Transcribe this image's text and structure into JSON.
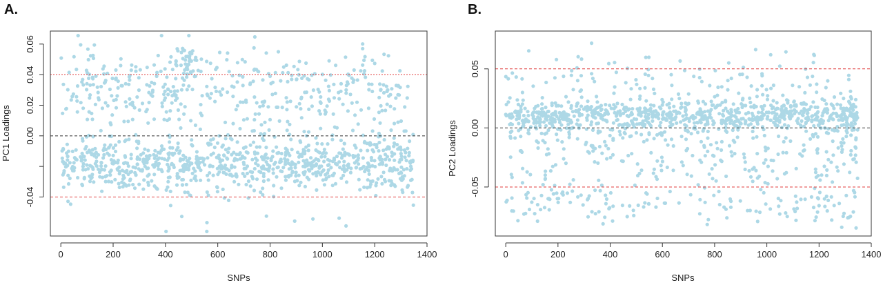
{
  "colors": {
    "point": "#add8e6",
    "reference_line": "#e03c3c",
    "zero_line": "#333333",
    "axis": "#333333"
  },
  "chart_data": [
    {
      "panel": "A.",
      "type": "scatter",
      "xlabel": "SNPs",
      "ylabel": "PC1 Loadings",
      "xlim": [
        -40,
        1400
      ],
      "ylim": [
        -0.0655,
        0.0685
      ],
      "xticks": [
        0,
        200,
        400,
        600,
        800,
        1000,
        1200,
        1400
      ],
      "xtick_labels": [
        "0",
        "200",
        "400",
        "600",
        "800",
        "1000",
        "1200",
        "1400"
      ],
      "yticks": [
        -0.04,
        -0.02,
        0.0,
        0.02,
        0.04,
        0.06
      ],
      "ytick_labels": [
        "-0.04",
        "",
        "0.00",
        "0.02",
        "0.04",
        "0.06"
      ],
      "hlines": [
        {
          "y": 0.04,
          "style": "dotted",
          "color": "reference_line"
        },
        {
          "y": 0.0,
          "style": "dashed",
          "color": "zero_line"
        },
        {
          "y": -0.04,
          "style": "dashed",
          "color": "reference_line"
        }
      ],
      "n_points": 1348,
      "point_clusters": [
        {
          "x_range": [
            0,
            1348
          ],
          "y_mean": -0.018,
          "y_sd": 0.009,
          "share": 0.62
        },
        {
          "x_range": [
            0,
            1348
          ],
          "y_mean": 0.03,
          "y_sd": 0.012,
          "share": 0.28
        },
        {
          "x_range": [
            420,
            520
          ],
          "y_mean": 0.048,
          "y_sd": 0.006,
          "share": 0.03
        },
        {
          "x_range": [
            0,
            1348
          ],
          "y_mean": 0.0,
          "y_sd": 0.025,
          "share": 0.07
        }
      ],
      "grid": false,
      "legend": "none"
    },
    {
      "panel": "B.",
      "type": "scatter",
      "xlabel": "SNPs",
      "ylabel": "PC2 Loadings",
      "xlim": [
        -40,
        1400
      ],
      "ylim": [
        -0.0915,
        0.082
      ],
      "xticks": [
        0,
        200,
        400,
        600,
        800,
        1000,
        1200,
        1400
      ],
      "xtick_labels": [
        "0",
        "200",
        "400",
        "600",
        "800",
        "1000",
        "1200",
        "1400"
      ],
      "yticks": [
        -0.05,
        0.0,
        0.05
      ],
      "ytick_labels": [
        "-0.05",
        "0.00",
        "0.05"
      ],
      "hlines": [
        {
          "y": 0.05,
          "style": "dashed",
          "color": "reference_line"
        },
        {
          "y": 0.0,
          "style": "dashed",
          "color": "zero_line"
        },
        {
          "y": -0.05,
          "style": "dashed",
          "color": "reference_line"
        }
      ],
      "n_points": 1348,
      "point_clusters": [
        {
          "x_range": [
            0,
            1348
          ],
          "y_mean": 0.01,
          "y_sd": 0.007,
          "share": 0.6
        },
        {
          "x_range": [
            0,
            1348
          ],
          "y_mean": -0.02,
          "y_sd": 0.02,
          "share": 0.22
        },
        {
          "x_range": [
            0,
            1348
          ],
          "y_mean": 0.04,
          "y_sd": 0.012,
          "share": 0.08
        },
        {
          "x_range": [
            0,
            1348
          ],
          "y_mean": -0.065,
          "y_sd": 0.009,
          "share": 0.1
        }
      ],
      "grid": false,
      "legend": "none"
    }
  ]
}
